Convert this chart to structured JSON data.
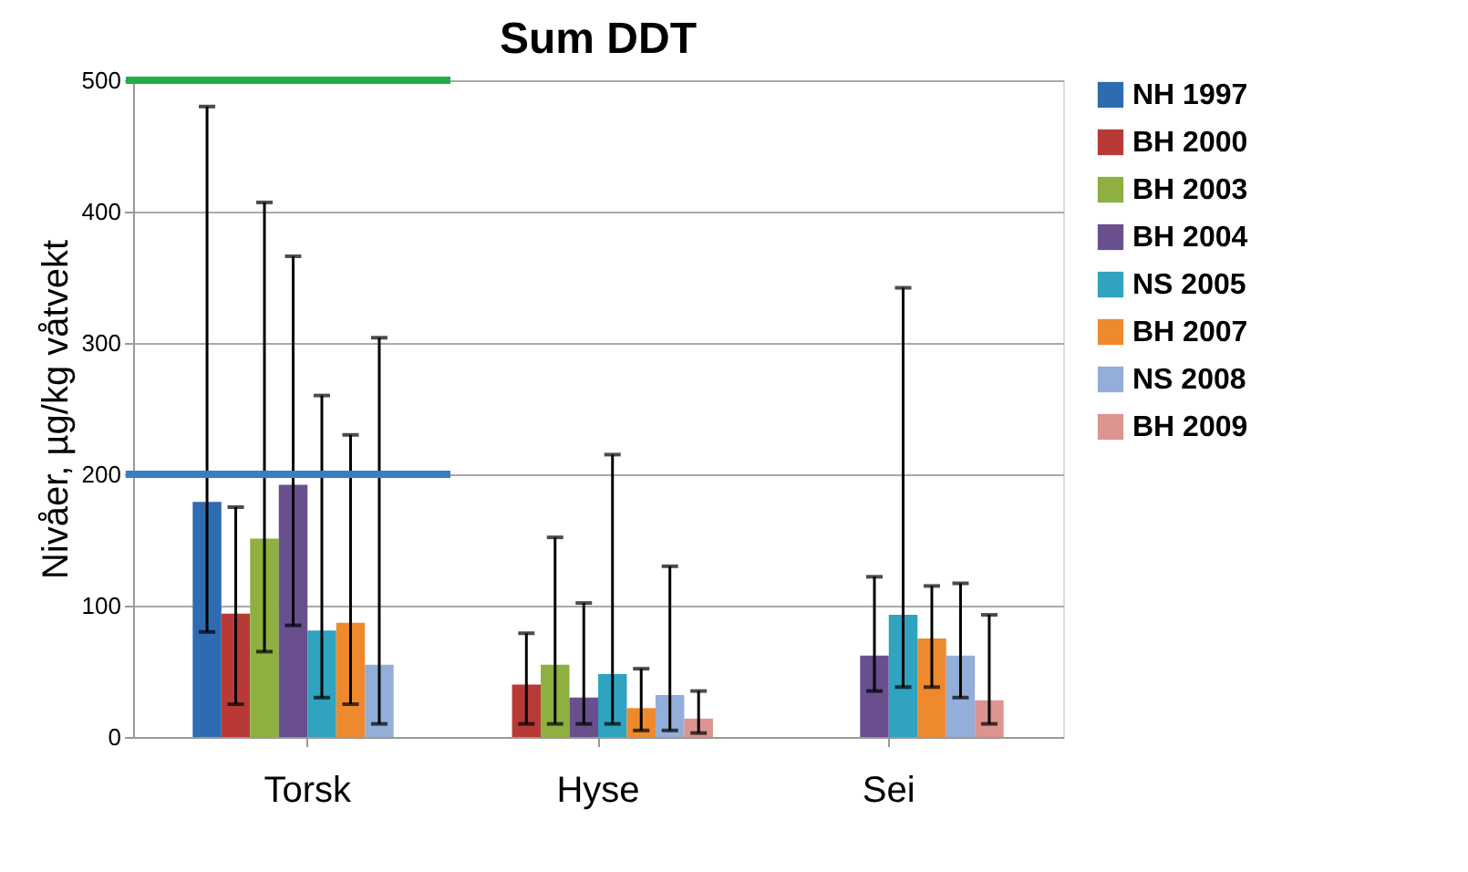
{
  "chart_data": {
    "type": "bar",
    "title": "Sum DDT",
    "ylabel": "Nivåer, µg/kg våtvekt",
    "categories": [
      "Torsk",
      "Hyse",
      "Sei"
    ],
    "series": [
      {
        "name": "NH 1997",
        "color": "#2e6bb0",
        "values": [
          179,
          null,
          null
        ],
        "errors": [
          [
            80,
            480
          ],
          null,
          null
        ]
      },
      {
        "name": "BH 2000",
        "color": "#b83a37",
        "values": [
          94,
          40,
          null
        ],
        "errors": [
          [
            25,
            175
          ],
          [
            10,
            79
          ],
          null
        ]
      },
      {
        "name": "BH 2003",
        "color": "#8db040",
        "values": [
          151,
          55,
          null
        ],
        "errors": [
          [
            65,
            407
          ],
          [
            10,
            152
          ],
          null
        ]
      },
      {
        "name": "BH 2004",
        "color": "#6a4f8f",
        "values": [
          192,
          30,
          62
        ],
        "errors": [
          [
            85,
            366
          ],
          [
            10,
            102
          ],
          [
            35,
            122
          ]
        ]
      },
      {
        "name": "NS 2005",
        "color": "#2fa3bf",
        "values": [
          81,
          48,
          93
        ],
        "errors": [
          [
            30,
            260
          ],
          [
            10,
            215
          ],
          [
            38,
            342
          ]
        ]
      },
      {
        "name": "BH 2007",
        "color": "#ee8a2d",
        "values": [
          87,
          22,
          75
        ],
        "errors": [
          [
            25,
            230
          ],
          [
            5,
            52
          ],
          [
            38,
            115
          ]
        ]
      },
      {
        "name": "NS 2008",
        "color": "#93aed8",
        "values": [
          55,
          32,
          62
        ],
        "errors": [
          [
            10,
            304
          ],
          [
            5,
            130
          ],
          [
            30,
            117
          ]
        ]
      },
      {
        "name": "BH 2009",
        "color": "#db9490",
        "values": [
          null,
          14,
          28
        ],
        "errors": [
          null,
          [
            3,
            35
          ],
          [
            10,
            93
          ]
        ]
      }
    ],
    "ylim": [
      0,
      500
    ],
    "yticks": [
      0,
      100,
      200,
      300,
      400,
      500
    ],
    "ref_lines": [
      {
        "axis": "y",
        "value": 500,
        "color": "#1fae4b"
      },
      {
        "axis": "y",
        "value": 200,
        "color": "#3a7dc4"
      }
    ],
    "grid": "y",
    "legend": "right"
  }
}
